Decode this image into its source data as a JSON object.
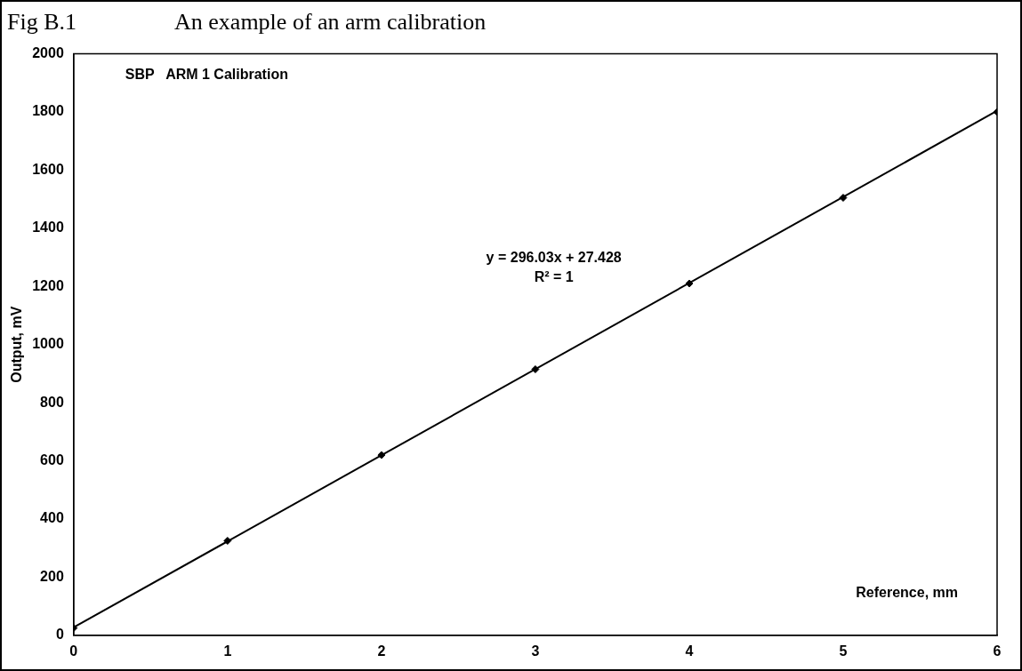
{
  "chart_data": {
    "type": "scatter",
    "title": "Fig B.1",
    "subtitle": "An example of an arm calibration",
    "xlabel": "Reference, mm",
    "ylabel": "Output, mV",
    "annotations": [
      "SBP   ARM 1 Calibration",
      "y = 296.03x + 27.428",
      "R² = 1"
    ],
    "x": [
      0,
      1,
      2,
      3,
      4,
      5,
      6
    ],
    "series": [
      {
        "color": "#000000",
        "marker": "diamond",
        "values": [
          25,
          325,
          620,
          915,
          1210,
          1505,
          1800
        ]
      },
      {
        "type": "line",
        "color": "#000000",
        "marker": "none",
        "x": [
          0,
          6
        ],
        "values": [
          27,
          1804
        ]
      }
    ],
    "xlim": [
      0,
      6
    ],
    "xticks": [
      0,
      1,
      2,
      3,
      4,
      5,
      6
    ],
    "ylim": [
      0,
      2000
    ],
    "yticks": [
      0,
      200,
      400,
      600,
      800,
      1000,
      1200,
      1400,
      1600,
      1800,
      2000
    ],
    "grid": false,
    "legend": false,
    "line_style": "solid"
  }
}
